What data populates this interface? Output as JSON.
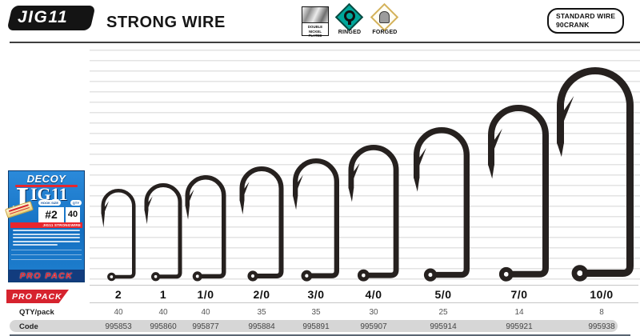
{
  "header": {
    "model": "JIG11",
    "series_name": "STRONG WIRE",
    "features": [
      {
        "name": "double-nickel-plated",
        "label_line1": "DOUBLE NICKEL",
        "label_line2": "PLATED"
      },
      {
        "name": "ringed",
        "label": "RINGED"
      },
      {
        "name": "forged",
        "label": "FORGED"
      }
    ],
    "wire_badge": {
      "line1": "STANDARD WIRE",
      "line2": "90CRANK"
    }
  },
  "package": {
    "brand": "DECOY",
    "model_initial": "J",
    "model_rest": "IG11",
    "hook_size_label": "HOOK SIZE",
    "qty_label": "QTY",
    "hook_size_value": "#2",
    "qty_value": "40",
    "series_bar": "JIG11 STRONGWIRE",
    "pro_pack_label": "PRO PACK"
  },
  "pro_pack_banner": "PRO PACK",
  "table": {
    "qty_row_label": "QTY/pack",
    "code_row_label": "Code",
    "columns": [
      {
        "size": "2",
        "qty": "40",
        "code": "995853"
      },
      {
        "size": "1",
        "qty": "40",
        "code": "995860"
      },
      {
        "size": "1/0",
        "qty": "40",
        "code": "995877"
      },
      {
        "size": "2/0",
        "qty": "35",
        "code": "995884"
      },
      {
        "size": "3/0",
        "qty": "35",
        "code": "995891"
      },
      {
        "size": "4/0",
        "qty": "30",
        "code": "995907"
      },
      {
        "size": "5/0",
        "qty": "25",
        "code": "995914"
      },
      {
        "size": "7/0",
        "qty": "14",
        "code": "995921"
      },
      {
        "size": "10/0",
        "qty": "8",
        "code": "995938"
      }
    ]
  },
  "colors": {
    "accent_red": "#d6232e",
    "package_blue": "#1878c8",
    "ringed_teal": "#00a79b",
    "forged_gold": "#d4b25a",
    "hook_ink": "#26211f"
  }
}
